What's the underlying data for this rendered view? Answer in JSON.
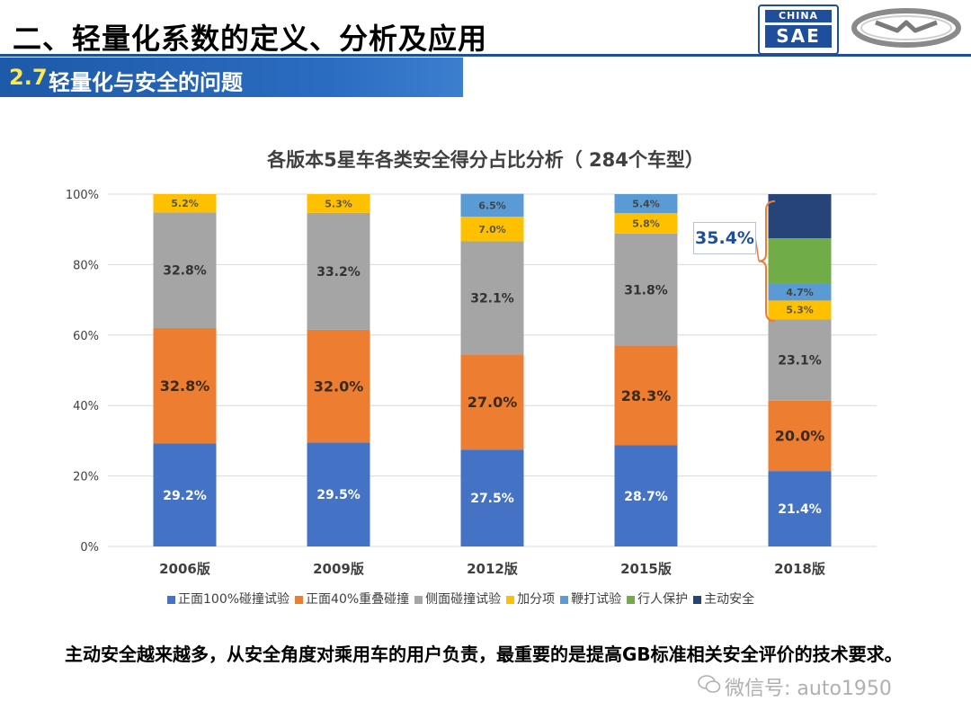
{
  "header": {
    "title": "二、轻量化系数的定义、分析及应用",
    "section_number": "2.7",
    "section_title": "轻量化与安全的问题",
    "logo_top_text": "CHINA",
    "logo_bottom_text": "SAE"
  },
  "chart_data": {
    "type": "bar",
    "stacked": true,
    "title": "各版本5星车各类安全得分占比分析（ 284个车型）",
    "categories": [
      "2006版",
      "2009版",
      "2012版",
      "2015版",
      "2018版"
    ],
    "ylim": [
      0,
      100
    ],
    "yticks": [
      "0%",
      "20%",
      "40%",
      "60%",
      "80%",
      "100%"
    ],
    "grid": true,
    "legend_position": "bottom",
    "series": [
      {
        "name": "正面100%碰撞试验",
        "color": "#4472c4",
        "values": [
          29.2,
          29.5,
          27.5,
          28.7,
          21.4
        ],
        "labels": [
          "29.2%",
          "29.5%",
          "27.5%",
          "28.7%",
          "21.4%"
        ]
      },
      {
        "name": "正面40%重叠碰撞",
        "color": "#ed7d31",
        "values": [
          32.8,
          32.0,
          27.0,
          28.3,
          20.0
        ],
        "labels": [
          "32.8%",
          "32.0%",
          "27.0%",
          "28.3%",
          "20.0%"
        ]
      },
      {
        "name": "侧面碰撞试验",
        "color": "#a5a5a5",
        "values": [
          32.8,
          33.2,
          32.1,
          31.8,
          23.1
        ],
        "labels": [
          "32.8%",
          "33.2%",
          "32.1%",
          "31.8%",
          "23.1%"
        ]
      },
      {
        "name": "加分项",
        "color": "#ffc000",
        "values": [
          5.2,
          5.3,
          7.0,
          5.8,
          5.3
        ],
        "labels": [
          "5.2%",
          "5.3%",
          "7.0%",
          "5.8%",
          "5.3%"
        ]
      },
      {
        "name": "鞭打试验",
        "color": "#5b9bd5",
        "values": [
          0,
          0,
          6.5,
          5.4,
          4.7
        ],
        "labels": [
          "",
          "",
          "6.5%",
          "5.4%",
          "4.7%"
        ]
      },
      {
        "name": "行人保护",
        "color": "#70ad47",
        "values": [
          0,
          0,
          0,
          0,
          13.0
        ],
        "labels": [
          "",
          "",
          "",
          "",
          ""
        ]
      },
      {
        "name": "主动安全",
        "color": "#264478",
        "values": [
          0,
          0,
          0,
          0,
          12.5
        ],
        "labels": [
          "",
          "",
          "",
          "",
          ""
        ]
      }
    ],
    "annotation": "35.4%"
  },
  "footnote": "主动安全越来越多，从安全角度对乘用车的用户负责，最重要的是提高GB标准相关安全评价的技术要求。",
  "watermark": "微信号: auto1950"
}
